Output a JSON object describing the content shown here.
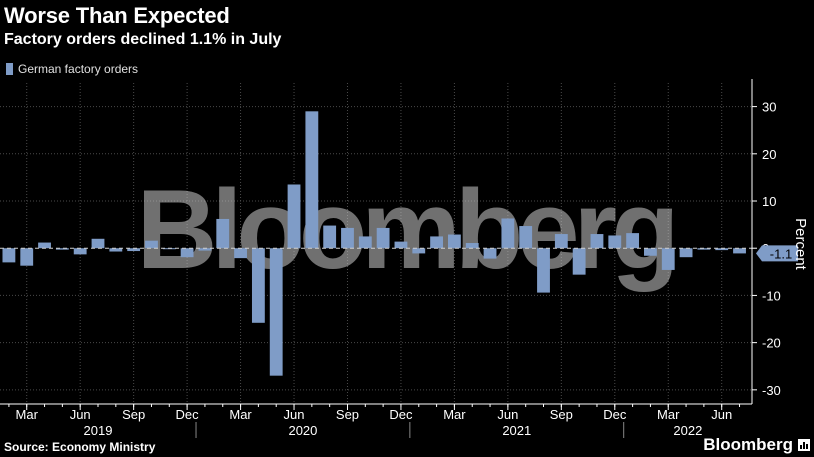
{
  "header": {
    "title": "Worse Than Expected",
    "subtitle": "Factory orders declined 1.1% in July"
  },
  "footer": {
    "source": "Source: Economy Ministry",
    "brand": "Bloomberg"
  },
  "watermark": "Bloomberg",
  "colors": {
    "background": "#000000",
    "bar": "#7f9cc7",
    "grid": "#4a4a4a",
    "zero_line": "#cfcfcf",
    "text": "#ffffff",
    "watermark": "#cccccc"
  },
  "chart_data": {
    "type": "bar",
    "title": "Worse Than Expected",
    "subtitle": "Factory orders declined 1.1% in July",
    "ylabel": "Percent",
    "ylim": [
      -33,
      35
    ],
    "yticks": [
      30,
      20,
      10,
      0,
      -10,
      -20,
      -30
    ],
    "y_axis_side": "right",
    "grid": true,
    "legend_position": "top-left",
    "series": [
      {
        "name": "German factory orders",
        "values": [
          -3.0,
          -3.7,
          1.2,
          -0.3,
          -1.3,
          2.0,
          -0.7,
          -0.6,
          1.6,
          -0.2,
          -1.9,
          -0.5,
          6.2,
          -2.1,
          -15.8,
          -27.0,
          13.5,
          29.0,
          4.8,
          4.3,
          2.5,
          4.3,
          1.4,
          -1.1,
          2.5,
          2.9,
          1.1,
          -2.2,
          6.3,
          4.7,
          -9.4,
          3.0,
          -5.6,
          3.0,
          2.7,
          3.2,
          -1.6,
          -4.6,
          -1.9,
          -0.3,
          -0.4,
          -1.1
        ]
      }
    ],
    "x_start": "2019-02",
    "x_end": "2022-07",
    "month_tick_labels": [
      {
        "date": "2019-03",
        "label": "Mar"
      },
      {
        "date": "2019-06",
        "label": "Jun"
      },
      {
        "date": "2019-09",
        "label": "Sep"
      },
      {
        "date": "2019-12",
        "label": "Dec"
      },
      {
        "date": "2020-03",
        "label": "Mar"
      },
      {
        "date": "2020-06",
        "label": "Jun"
      },
      {
        "date": "2020-09",
        "label": "Sep"
      },
      {
        "date": "2020-12",
        "label": "Dec"
      },
      {
        "date": "2021-03",
        "label": "Mar"
      },
      {
        "date": "2021-06",
        "label": "Jun"
      },
      {
        "date": "2021-09",
        "label": "Sep"
      },
      {
        "date": "2021-12",
        "label": "Dec"
      },
      {
        "date": "2022-03",
        "label": "Mar"
      },
      {
        "date": "2022-06",
        "label": "Jun"
      }
    ],
    "year_labels": [
      "2019",
      "2020",
      "2021",
      "2022"
    ],
    "last_value_label": "-1.1"
  }
}
